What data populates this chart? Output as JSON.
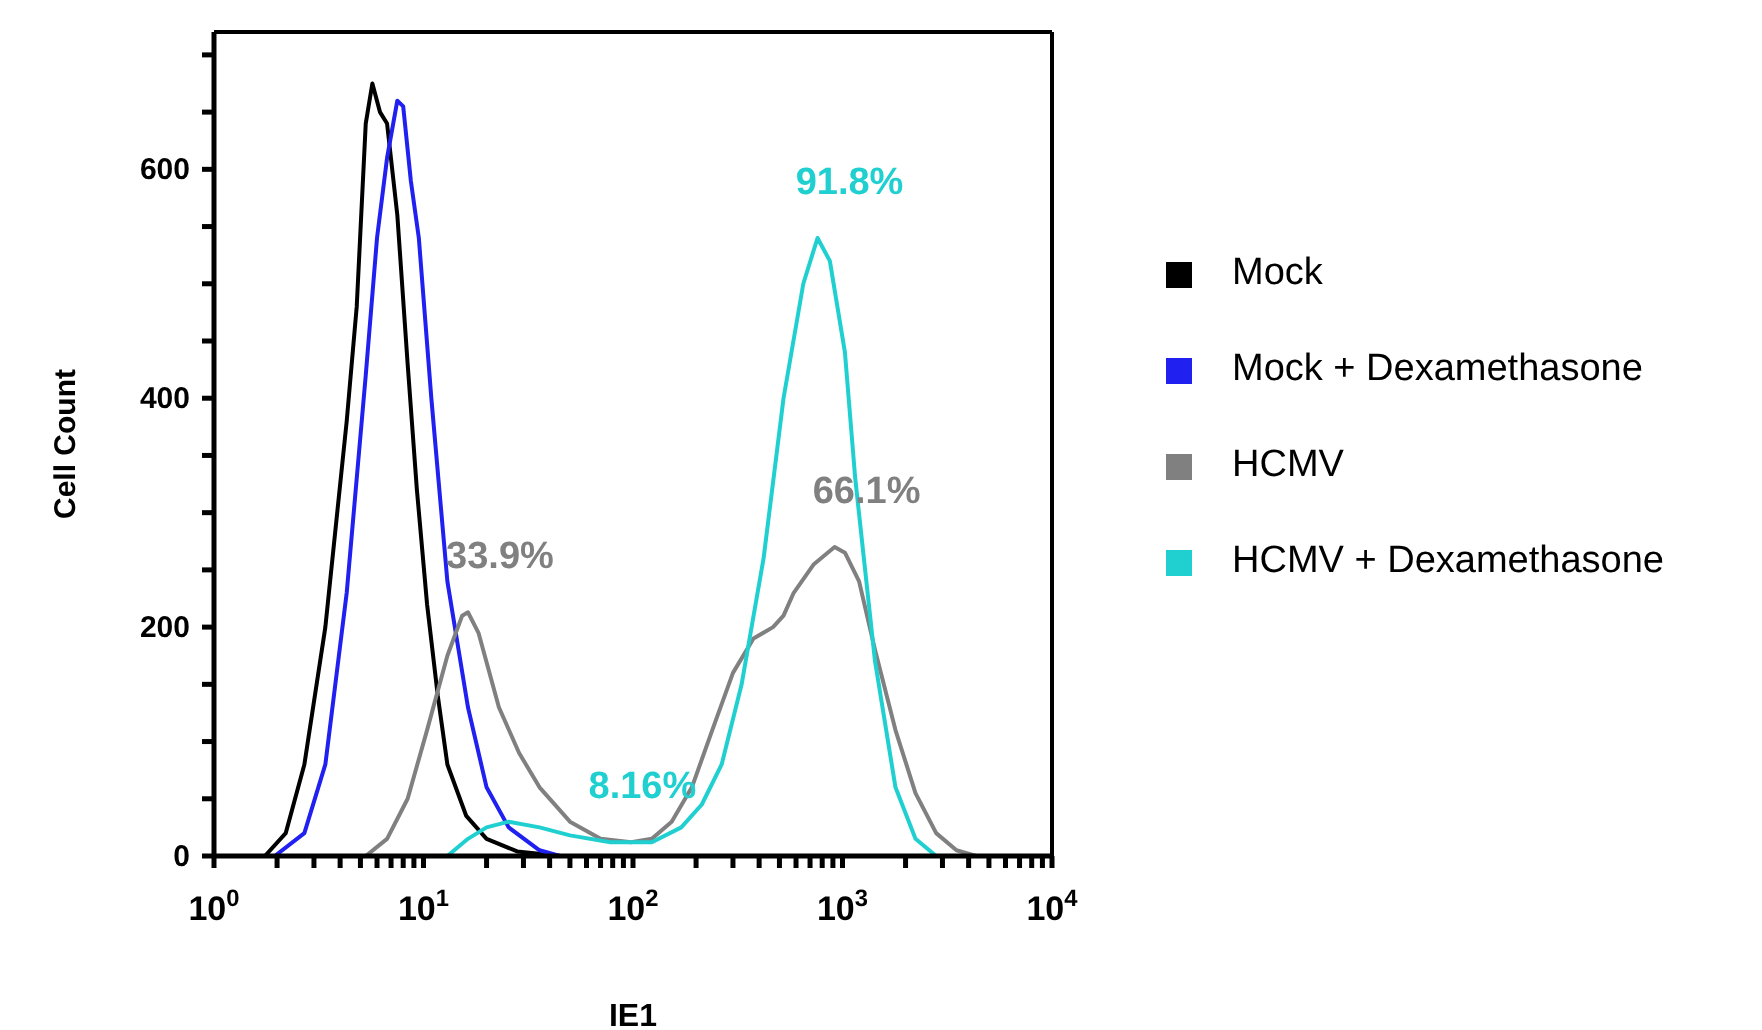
{
  "chart_data": {
    "type": "line",
    "xlabel": "IE1",
    "ylabel": "Cell Count",
    "log": "x",
    "xlim": [
      1,
      10000
    ],
    "ylim": [
      0,
      720
    ],
    "xticks": [
      {
        "value": 1,
        "label": "10$^{0}$"
      },
      {
        "value": 2,
        "label": null
      },
      {
        "value": 3,
        "label": null
      },
      {
        "value": 4,
        "label": null
      },
      {
        "value": 5,
        "label": null
      },
      {
        "value": 6,
        "label": null
      },
      {
        "value": 7,
        "label": null
      },
      {
        "value": 8,
        "label": null
      },
      {
        "value": 9,
        "label": null
      },
      {
        "value": 10,
        "label": "10$^{1}$"
      },
      {
        "value": 20,
        "label": null
      },
      {
        "value": 30,
        "label": null
      },
      {
        "value": 40,
        "label": null
      },
      {
        "value": 50,
        "label": null
      },
      {
        "value": 60,
        "label": null
      },
      {
        "value": 70,
        "label": null
      },
      {
        "value": 80,
        "label": null
      },
      {
        "value": 90,
        "label": null
      },
      {
        "value": 100,
        "label": "10$^{2}$"
      },
      {
        "value": 200,
        "label": null
      },
      {
        "value": 300,
        "label": null
      },
      {
        "value": 400,
        "label": null
      },
      {
        "value": 500,
        "label": null
      },
      {
        "value": 600,
        "label": null
      },
      {
        "value": 700,
        "label": null
      },
      {
        "value": 800,
        "label": null
      },
      {
        "value": 900,
        "label": null
      },
      {
        "value": 1000,
        "label": "10$^{3}$"
      },
      {
        "value": 2000,
        "label": null
      },
      {
        "value": 3000,
        "label": null
      },
      {
        "value": 4000,
        "label": null
      },
      {
        "value": 5000,
        "label": null
      },
      {
        "value": 6000,
        "label": null
      },
      {
        "value": 7000,
        "label": null
      },
      {
        "value": 8000,
        "label": null
      },
      {
        "value": 9000,
        "label": null
      },
      {
        "value": 10000,
        "label": "10$^{4}$"
      }
    ],
    "yticks": [
      0,
      {
        "value": 50,
        "label": null
      },
      {
        "value": 100,
        "label": null
      },
      {
        "value": 150,
        "label": null
      },
      200,
      {
        "value": 250,
        "label": null
      },
      {
        "value": 300,
        "label": null
      },
      {
        "value": 350,
        "label": null
      },
      400,
      {
        "value": 450,
        "label": null
      },
      {
        "value": 500,
        "label": null
      },
      {
        "value": 550,
        "label": null
      },
      600,
      {
        "value": 650,
        "label": null
      },
      {
        "value": 700,
        "label": null
      }
    ],
    "grid": false,
    "legend": "right",
    "marker": "none",
    "line_style": "solid",
    "series": [
      {
        "name": "Mock",
        "color": "#000000",
        "x": [
          1,
          1.75,
          2.2,
          2.7,
          3.4,
          4.3,
          4.8,
          5.3,
          5.7,
          6.2,
          6.7,
          7.5,
          8.4,
          9.3,
          10.4,
          11.7,
          13,
          16,
          20,
          28,
          45,
          10000
        ],
        "values": [
          0,
          0,
          20,
          80,
          200,
          380,
          480,
          640,
          675,
          650,
          640,
          560,
          430,
          320,
          220,
          140,
          80,
          35,
          15,
          4,
          0,
          0
        ]
      },
      {
        "name": "Mock + Dexamethasone",
        "color": "#2020f0",
        "x": [
          1,
          1.95,
          2.7,
          3.4,
          4.3,
          5.3,
          6,
          6.7,
          7.5,
          8,
          8.7,
          9.5,
          10.9,
          13,
          16.3,
          20,
          25.5,
          35.8,
          44.8,
          10000
        ],
        "values": [
          0,
          0,
          20,
          80,
          230,
          420,
          540,
          610,
          660,
          655,
          590,
          540,
          400,
          240,
          130,
          60,
          25,
          5,
          0,
          0
        ]
      },
      {
        "name": "HCMV",
        "color": "#808080",
        "x": [
          1,
          5.3,
          6.7,
          8.4,
          10.4,
          13,
          15.3,
          16.3,
          18.3,
          22.9,
          28.6,
          35.8,
          50,
          70,
          98,
          123,
          153,
          191,
          239,
          300,
          376,
          466,
          523,
          585,
          730,
          917,
          1027,
          1200,
          1430,
          1790,
          2230,
          2800,
          3500,
          4350,
          10000
        ],
        "values": [
          0,
          0,
          15,
          50,
          110,
          175,
          210,
          213,
          195,
          130,
          90,
          60,
          30,
          15,
          12,
          15,
          30,
          60,
          110,
          160,
          190,
          200,
          210,
          230,
          255,
          270,
          265,
          240,
          180,
          110,
          55,
          20,
          5,
          0,
          0
        ]
      },
      {
        "name": "HCMV + Dexamethasone",
        "color": "#20d0d0",
        "x": [
          1,
          13,
          16.3,
          20,
          25.5,
          35.8,
          50,
          78,
          123,
          170,
          213,
          265,
          330,
          420,
          523,
          650,
          760,
          870,
          1027,
          1150,
          1430,
          1790,
          2230,
          2800,
          10000
        ],
        "values": [
          0,
          0,
          15,
          25,
          30,
          25,
          18,
          12,
          12,
          25,
          45,
          80,
          150,
          260,
          400,
          500,
          540,
          520,
          440,
          330,
          170,
          60,
          15,
          0,
          0
        ]
      }
    ],
    "annotations": [
      {
        "text": "33.9%",
        "x": 16.3,
        "y": 213
      },
      {
        "text": "8.16%",
        "x": 78,
        "y": 12
      },
      {
        "text": "91.8%",
        "x": 760,
        "y": 540
      },
      {
        "text": "66.1%",
        "x": 917,
        "y": 270
      }
    ]
  }
}
